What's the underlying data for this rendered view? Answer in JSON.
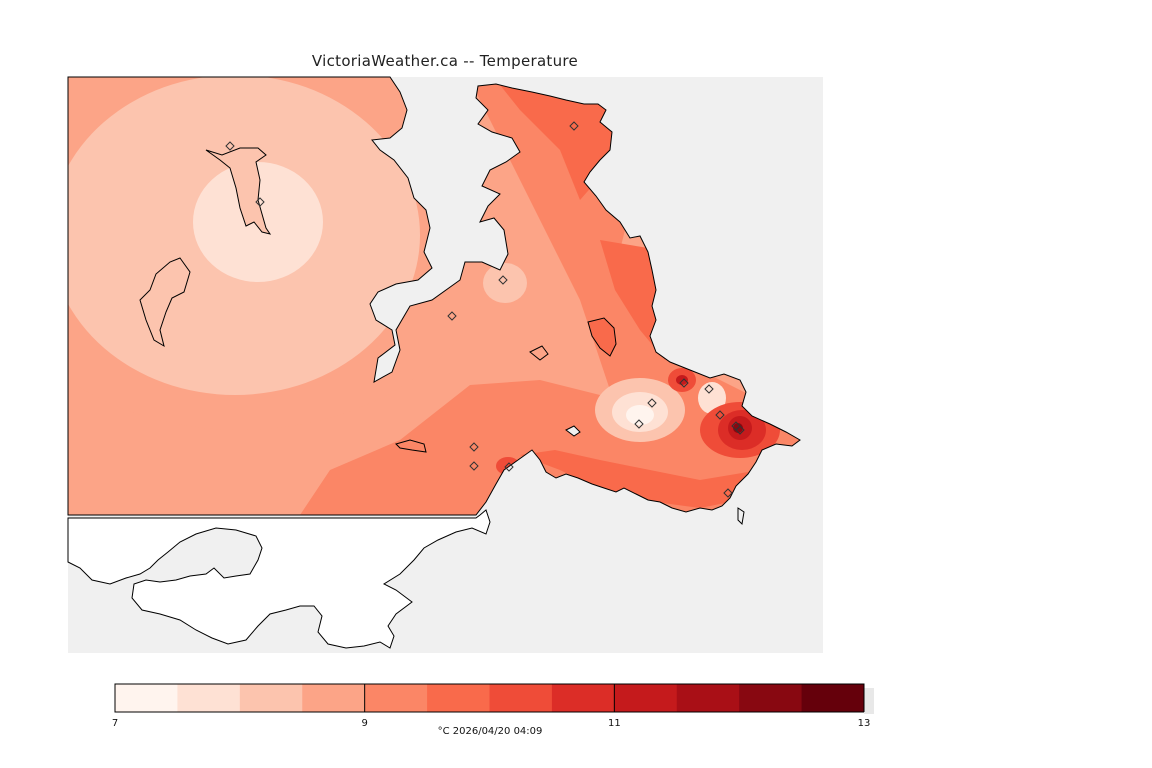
{
  "title": "VictoriaWeather.ca -- Temperature",
  "legend": {
    "units_timestamp": "°C  2026/04/20 04:09",
    "min": 7,
    "max": 13,
    "ticks": [
      "7",
      "9",
      "11",
      "13"
    ],
    "colors": [
      "#fff4ee",
      "#fee1d4",
      "#fcc4ae",
      "#fca487",
      "#fb8666",
      "#f96a4b",
      "#ef4c38",
      "#dc2d27",
      "#c51a1c",
      "#a90f16",
      "#880811",
      "#65000b"
    ]
  },
  "map": {
    "background_color": "#f0f0f0",
    "land_outside_color": "#ffffff",
    "station_marker": "diamond-icon"
  }
}
